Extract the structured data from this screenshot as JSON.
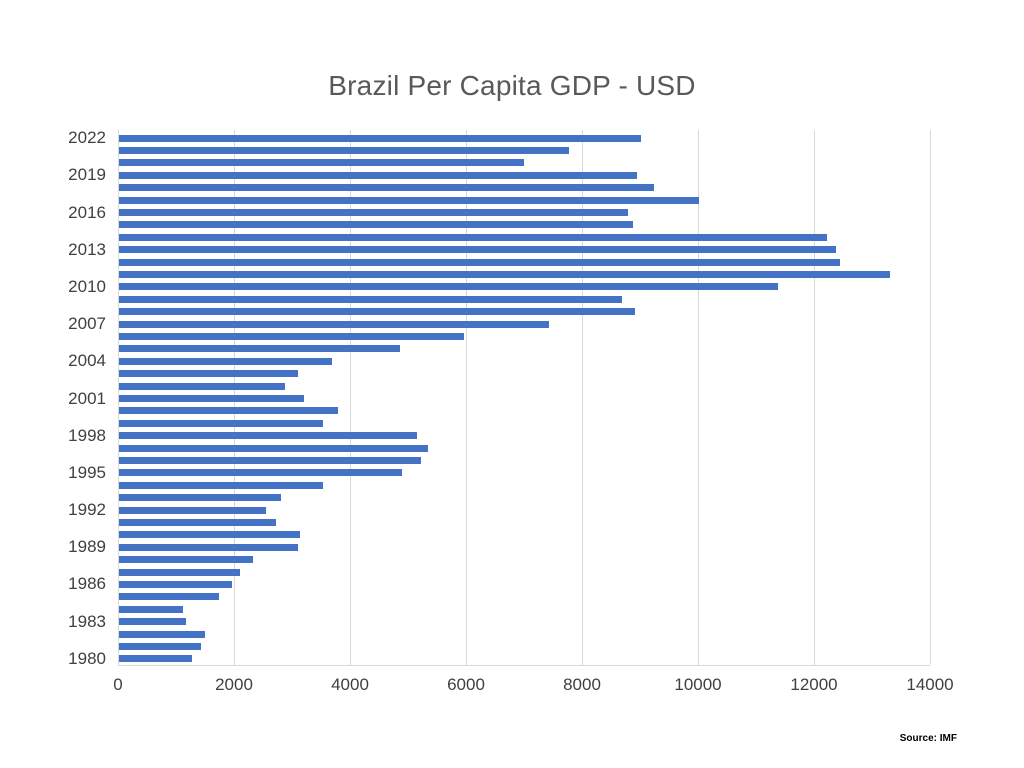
{
  "chart_data": {
    "type": "bar",
    "orientation": "horizontal",
    "title": "Brazil Per Capita GDP - USD",
    "xlabel": "",
    "ylabel": "",
    "xlim": [
      0,
      14000
    ],
    "grid": true,
    "legend": false,
    "categories": [
      2022,
      2021,
      2020,
      2019,
      2018,
      2017,
      2016,
      2015,
      2014,
      2013,
      2012,
      2011,
      2010,
      2009,
      2008,
      2007,
      2006,
      2005,
      2004,
      2003,
      2002,
      2001,
      2000,
      1999,
      1998,
      1997,
      1996,
      1995,
      1994,
      1993,
      1992,
      1991,
      1990,
      1989,
      1988,
      1987,
      1986,
      1985,
      1984,
      1983,
      1982,
      1981,
      1980
    ],
    "values": [
      9000,
      7750,
      6990,
      8930,
      9220,
      10000,
      8770,
      8870,
      12210,
      12360,
      12430,
      13290,
      11370,
      8670,
      8900,
      7410,
      5940,
      4840,
      3680,
      3090,
      2860,
      3190,
      3770,
      3510,
      5130,
      5320,
      5200,
      4880,
      3510,
      2800,
      2530,
      2700,
      3120,
      3080,
      2310,
      2090,
      1950,
      1730,
      1110,
      1150,
      1480,
      1410,
      1250
    ],
    "x_ticks": [
      0,
      2000,
      4000,
      6000,
      8000,
      10000,
      12000,
      14000
    ],
    "y_tick_labels": [
      "2022",
      "2019",
      "2016",
      "2013",
      "2010",
      "2007",
      "2004",
      "2001",
      "1998",
      "1995",
      "1992",
      "1989",
      "1986",
      "1983",
      "1980"
    ],
    "colors": {
      "bar": "#4472C4",
      "gridline": "#D9D9D9",
      "title": "#595959",
      "tick_label": "#404040"
    }
  },
  "source_note": "Source: IMF"
}
